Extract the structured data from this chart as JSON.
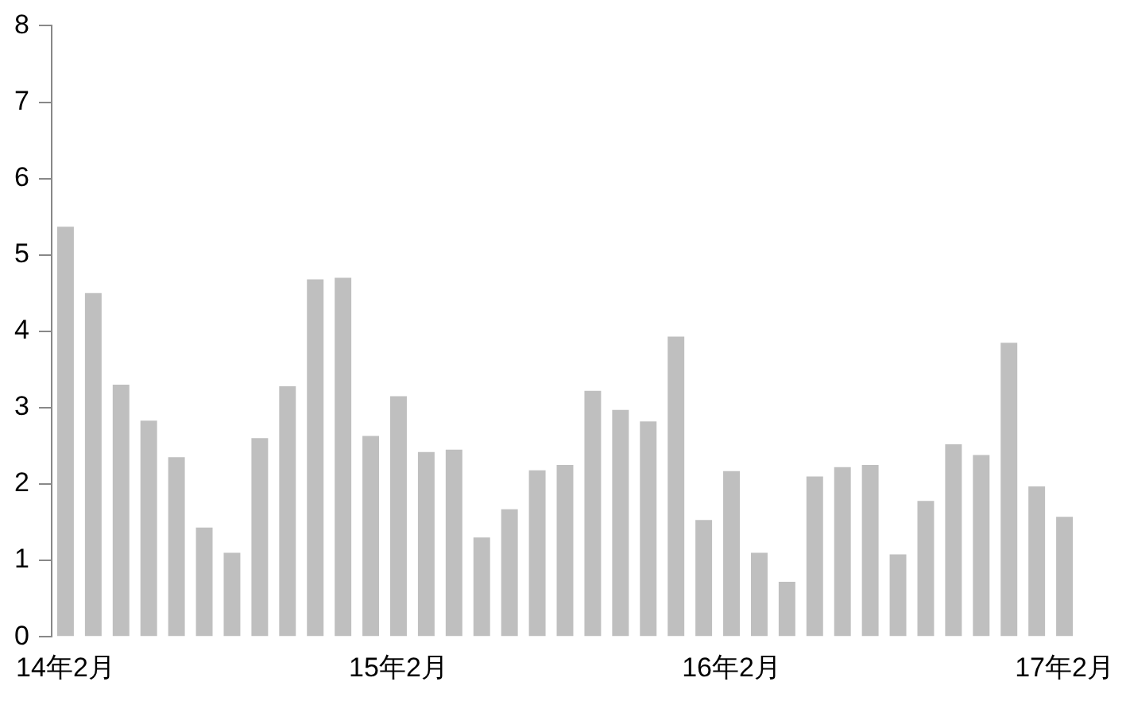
{
  "chart_data": {
    "type": "bar",
    "categories": [
      "14年2月",
      null,
      null,
      null,
      null,
      null,
      null,
      null,
      null,
      null,
      null,
      null,
      "15年2月",
      null,
      null,
      null,
      null,
      null,
      null,
      null,
      null,
      null,
      null,
      null,
      "16年2月",
      null,
      null,
      null,
      null,
      null,
      null,
      null,
      null,
      null,
      null,
      null,
      "17年2月"
    ],
    "values": [
      5.37,
      4.5,
      3.3,
      2.83,
      2.35,
      1.43,
      1.1,
      2.6,
      3.28,
      4.68,
      4.7,
      2.63,
      3.15,
      2.42,
      2.45,
      1.3,
      1.67,
      2.18,
      2.25,
      3.22,
      2.97,
      2.82,
      3.93,
      1.53,
      2.17,
      1.1,
      0.72,
      2.1,
      2.22,
      2.25,
      1.08,
      1.78,
      2.52,
      2.38,
      3.85,
      1.97,
      1.57
    ],
    "color": "#bfbfbf",
    "ylim": [
      0,
      8
    ],
    "yticks": [
      0,
      1,
      2,
      3,
      4,
      5,
      6,
      7,
      8
    ],
    "grid": false,
    "legend": false
  }
}
